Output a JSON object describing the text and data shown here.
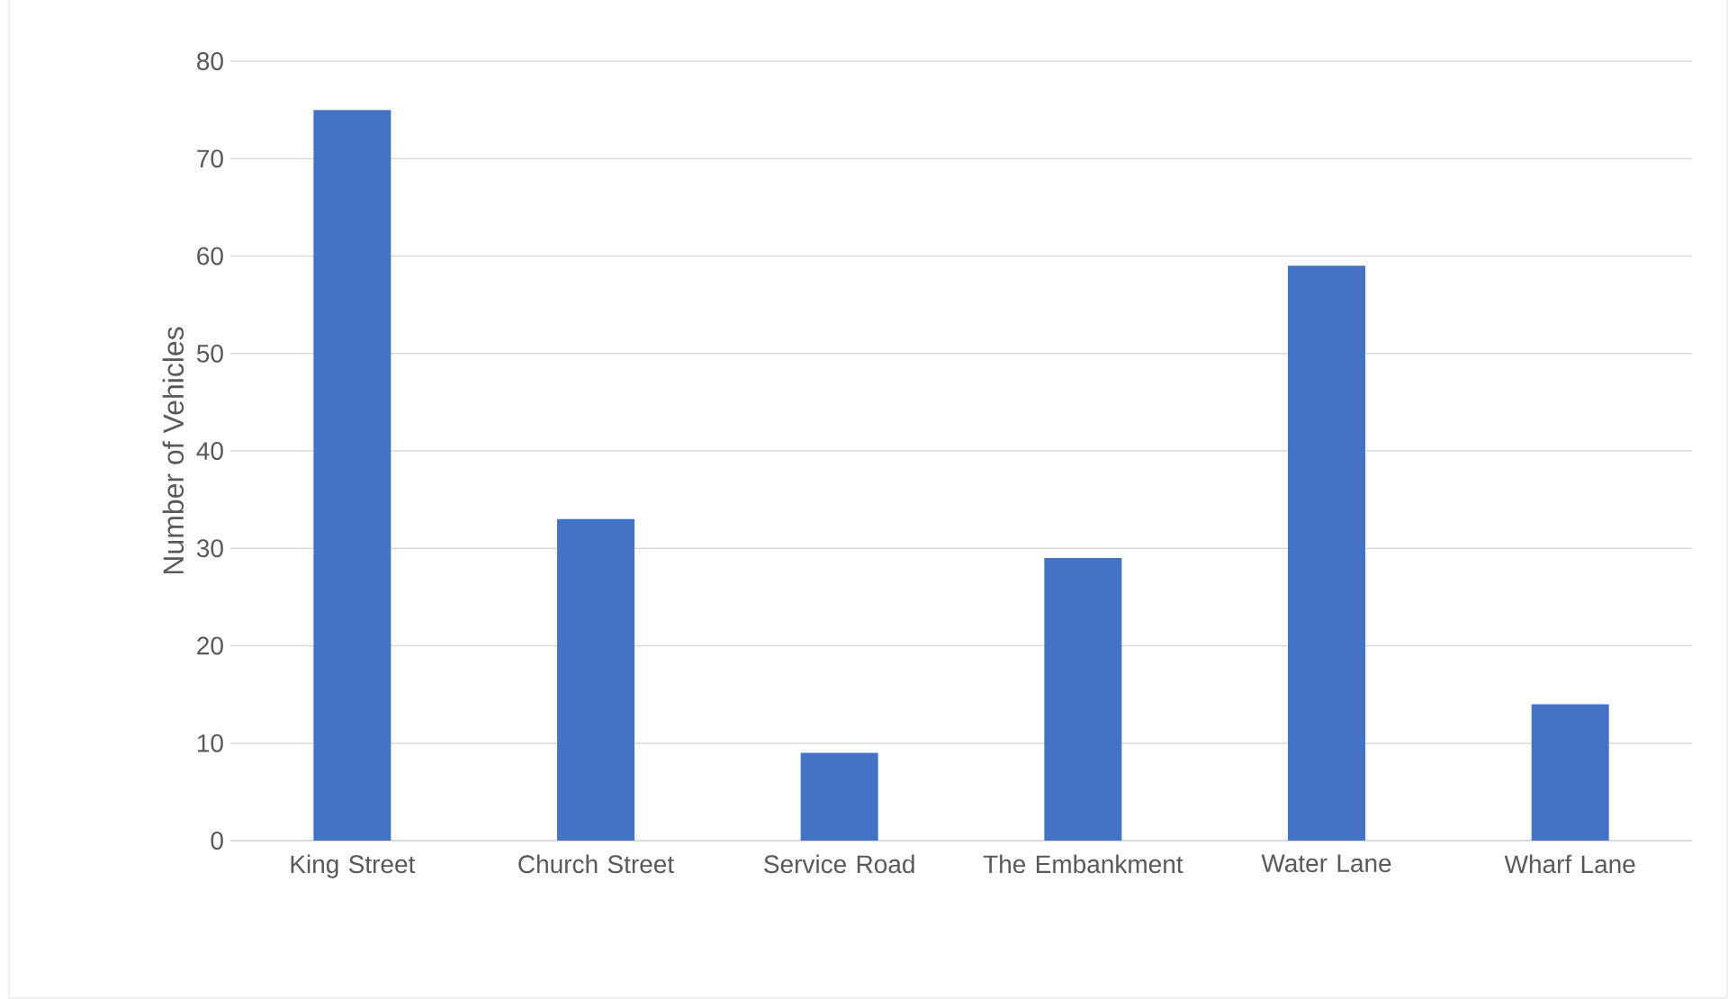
{
  "chart_data": {
    "type": "bar",
    "ylabel": "Number of Vehicles",
    "categories": [
      "King Street",
      "Church Street",
      "Service Road",
      "The Embankment",
      "Water Lane",
      "Wharf Lane"
    ],
    "values": [
      75,
      33,
      9,
      29,
      59,
      14
    ],
    "color": "#4472c4",
    "ylim": [
      0,
      80
    ],
    "yticks": [
      0,
      10,
      20,
      30,
      40,
      50,
      60,
      70,
      80
    ],
    "grid": "y"
  }
}
